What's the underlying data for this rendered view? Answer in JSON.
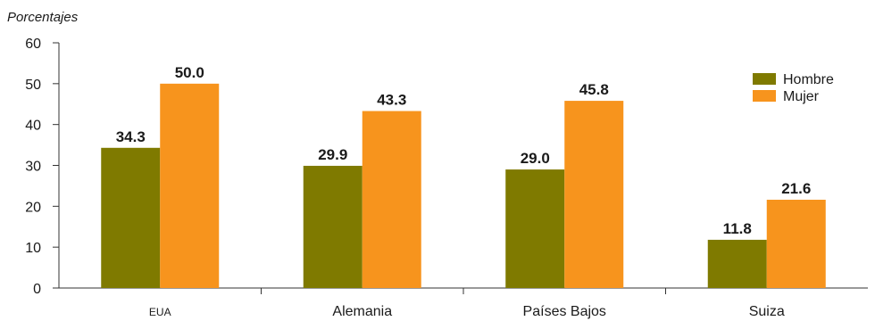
{
  "chart_data": {
    "type": "bar",
    "ylabel": "Porcentajes",
    "categories": [
      "EUA",
      "Alemania",
      "Países Bajos",
      "Suiza"
    ],
    "series": [
      {
        "name": "Hombre",
        "values": [
          34.3,
          29.9,
          29.0,
          11.8
        ],
        "color": "#7f7a00"
      },
      {
        "name": "Mujer",
        "values": [
          50.0,
          43.3,
          45.8,
          21.6
        ],
        "color": "#f7941d"
      }
    ],
    "data_labels": [
      [
        "34.3",
        "29.9",
        "29.0",
        "11.8"
      ],
      [
        "50.0",
        "43.3",
        "45.8",
        "21.6"
      ]
    ],
    "ylim": [
      0,
      60
    ],
    "yticks": [
      "0",
      "10",
      "20",
      "30",
      "40",
      "50",
      "60"
    ],
    "grid": false,
    "legend_position": "top-right"
  }
}
